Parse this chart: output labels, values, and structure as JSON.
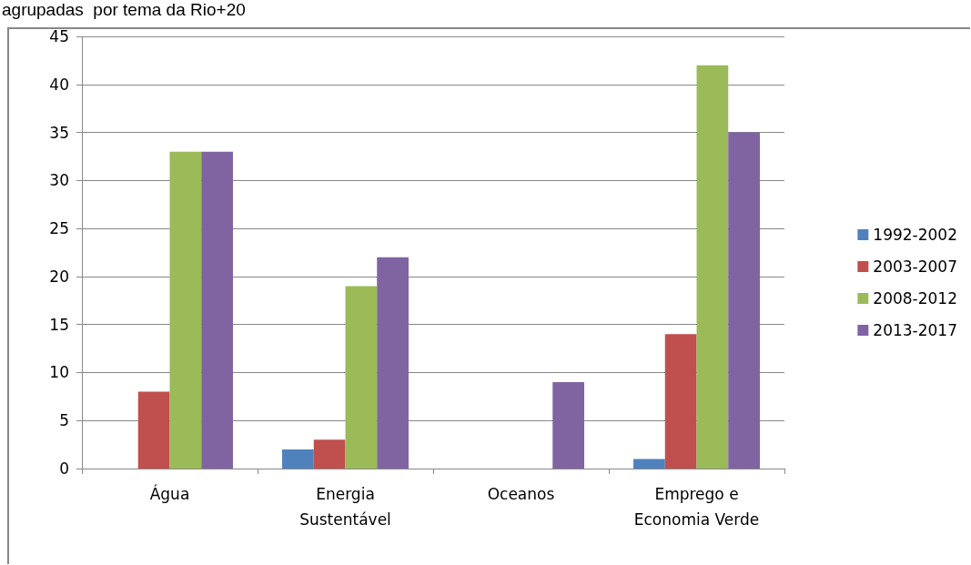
{
  "chart_data": {
    "type": "bar",
    "title": "agrupadas  por tema da Rio+20",
    "categories": [
      "Água",
      "Energia\nSustentável",
      "Oceanos",
      "Emprego e\nEconomia Verde"
    ],
    "series": [
      {
        "name": "1992-2002",
        "color": "#4f81bd",
        "values": [
          0,
          2,
          0,
          1
        ]
      },
      {
        "name": "2003-2007",
        "color": "#c0504d",
        "values": [
          8,
          3,
          0,
          14
        ]
      },
      {
        "name": "2008-2012",
        "color": "#9bbb59",
        "values": [
          33,
          19,
          0,
          42
        ]
      },
      {
        "name": "2013-2017",
        "color": "#8064a2",
        "values": [
          33,
          22,
          9,
          35
        ]
      }
    ],
    "ylim": [
      0,
      45
    ],
    "yticks": [
      0,
      5,
      10,
      15,
      20,
      25,
      30,
      35,
      40,
      45
    ],
    "grid": "y",
    "legend": "right"
  }
}
